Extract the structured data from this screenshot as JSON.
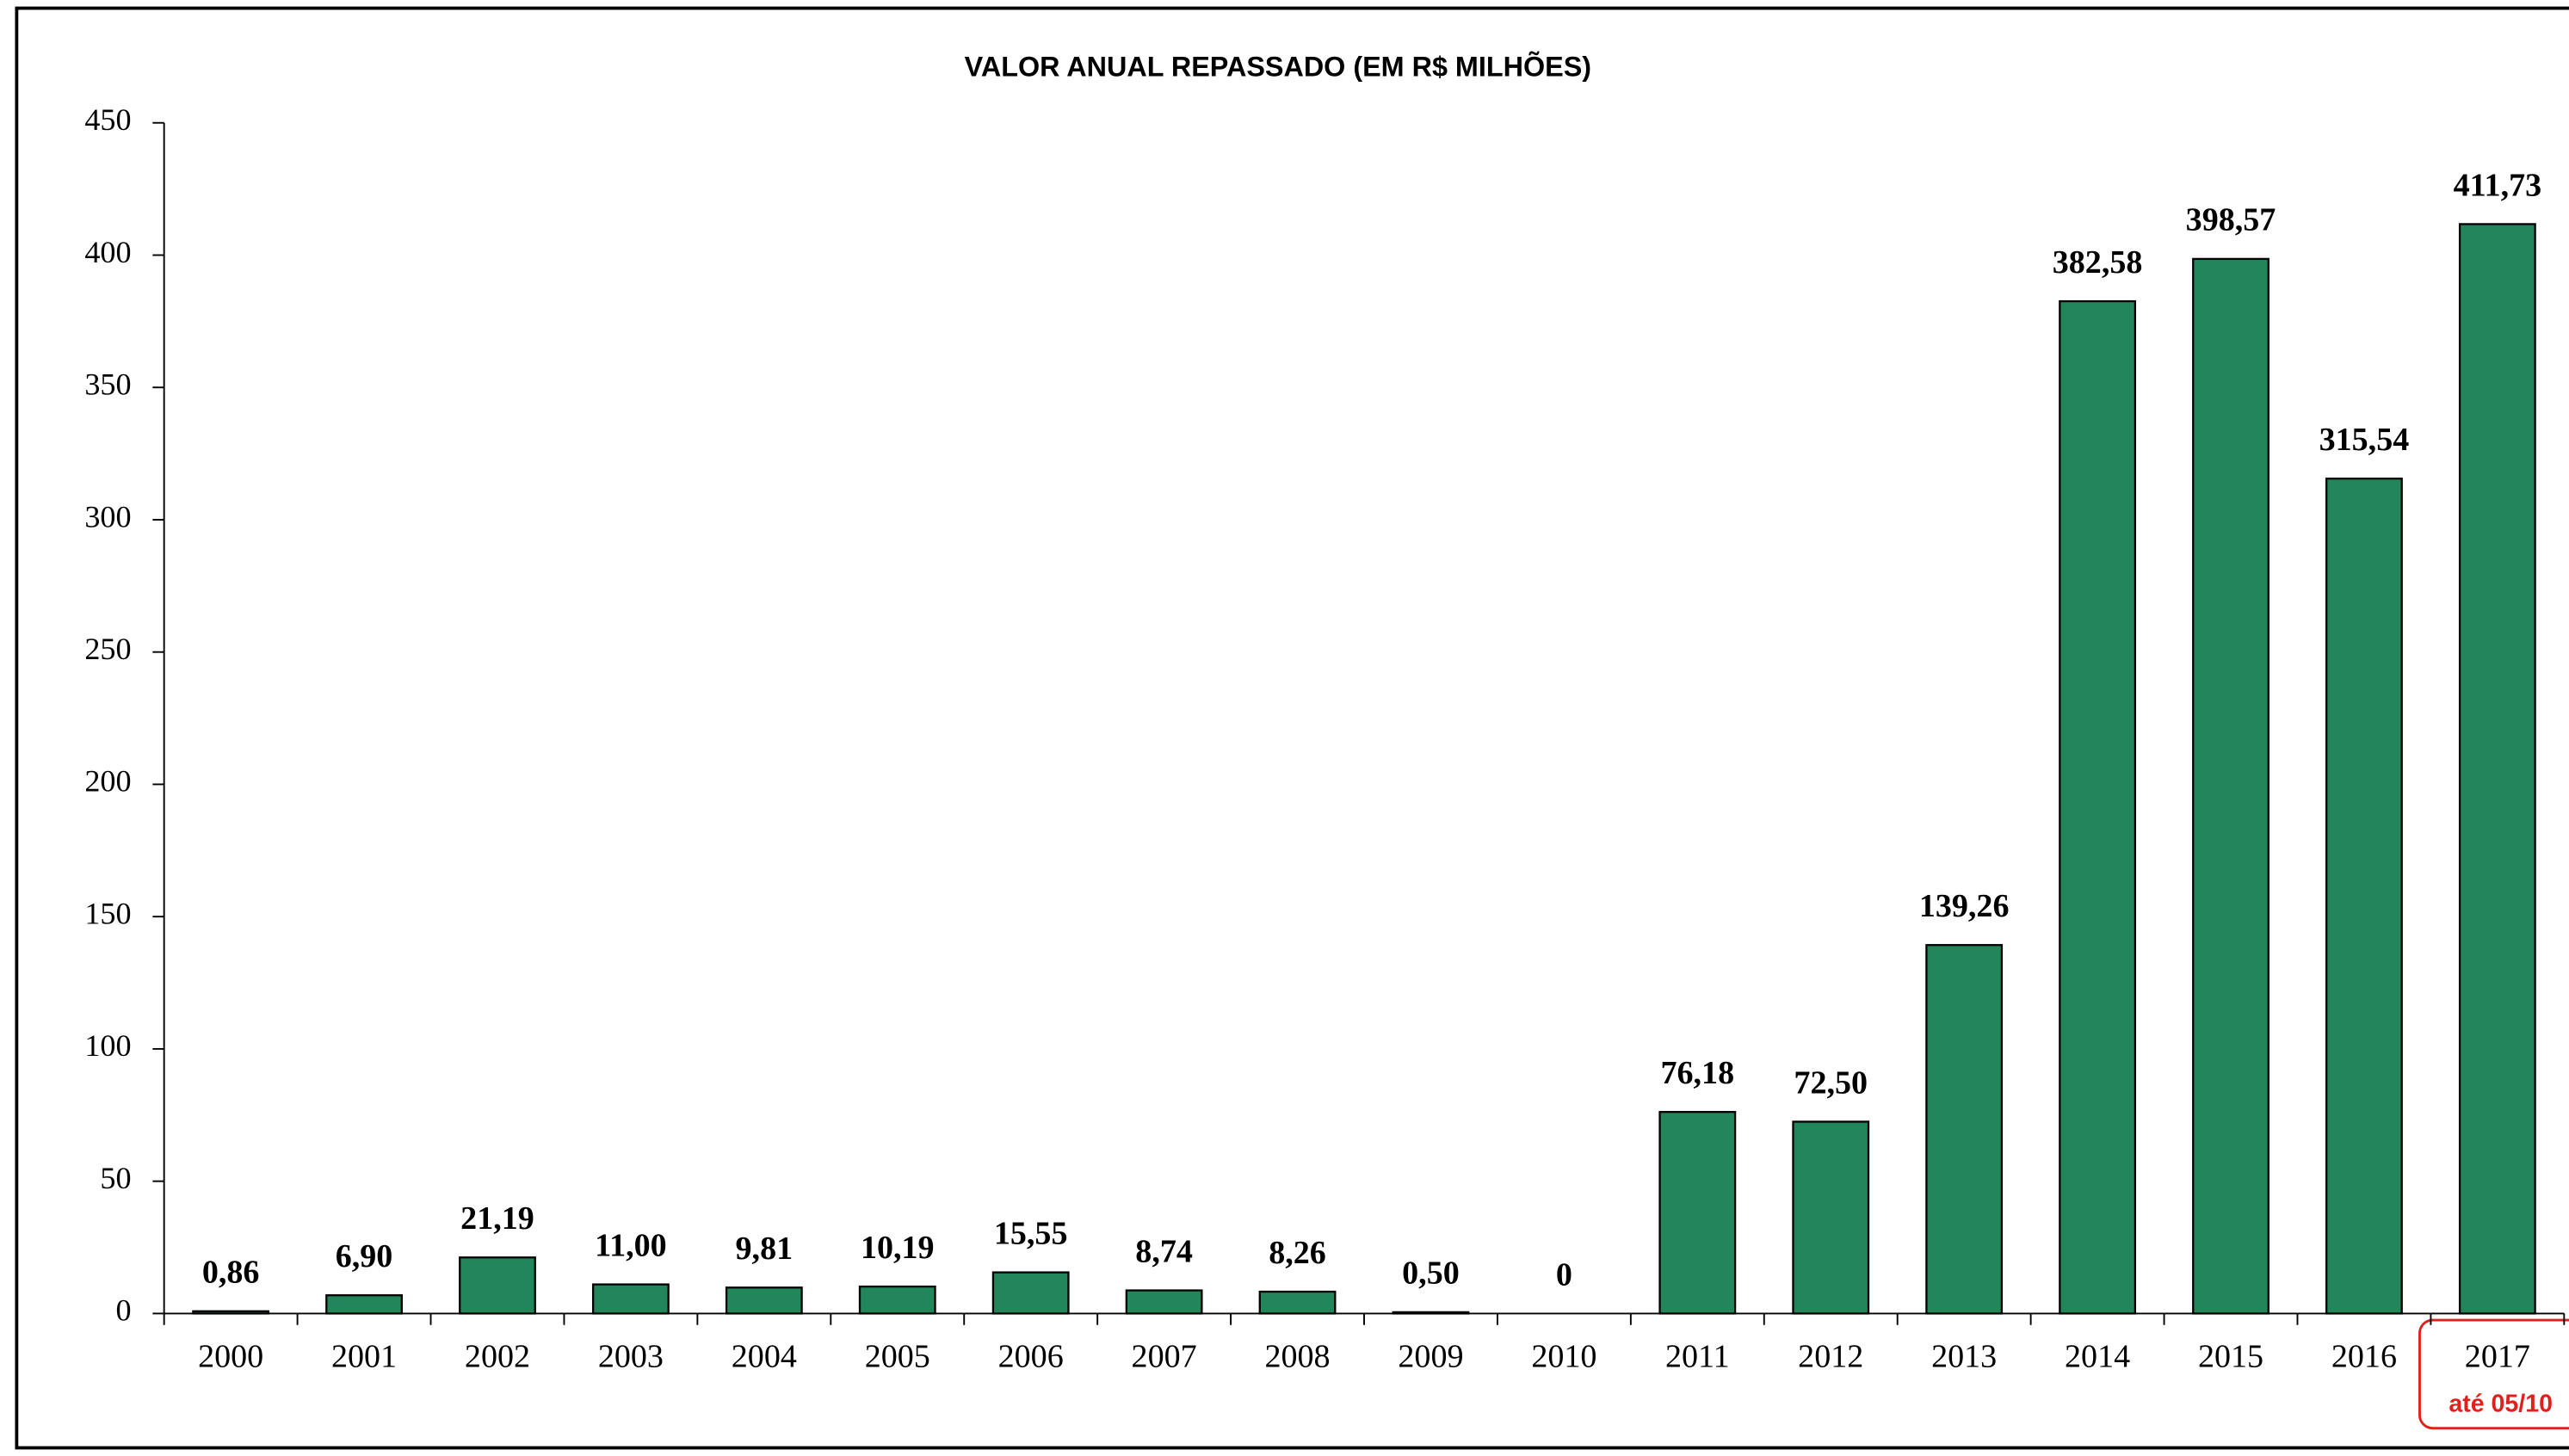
{
  "chart_data": {
    "type": "bar",
    "title": "VALOR ANUAL REPASSADO (EM R$ MILHÕES)",
    "categories": [
      "2000",
      "2001",
      "2002",
      "2003",
      "2004",
      "2005",
      "2006",
      "2007",
      "2008",
      "2009",
      "2010",
      "2011",
      "2012",
      "2013",
      "2014",
      "2015",
      "2016",
      "2017"
    ],
    "values": [
      0.86,
      6.9,
      21.19,
      11.0,
      9.81,
      10.19,
      15.55,
      8.74,
      8.26,
      0.5,
      0,
      76.18,
      72.5,
      139.26,
      382.58,
      398.57,
      315.54,
      411.73
    ],
    "value_labels": [
      "0,86",
      "6,90",
      "21,19",
      "11,00",
      "9,81",
      "10,19",
      "15,55",
      "8,74",
      "8,26",
      "0,50",
      "0",
      "76,18",
      "72,50",
      "139,26",
      "382,58",
      "398,57",
      "315,54",
      "411,73"
    ],
    "annotation": "até 05/10",
    "color": "#23855a",
    "ylim": [
      0,
      450
    ],
    "yticks": [
      0,
      50,
      100,
      150,
      200,
      250,
      300,
      350,
      400,
      450
    ],
    "grid": false
  }
}
